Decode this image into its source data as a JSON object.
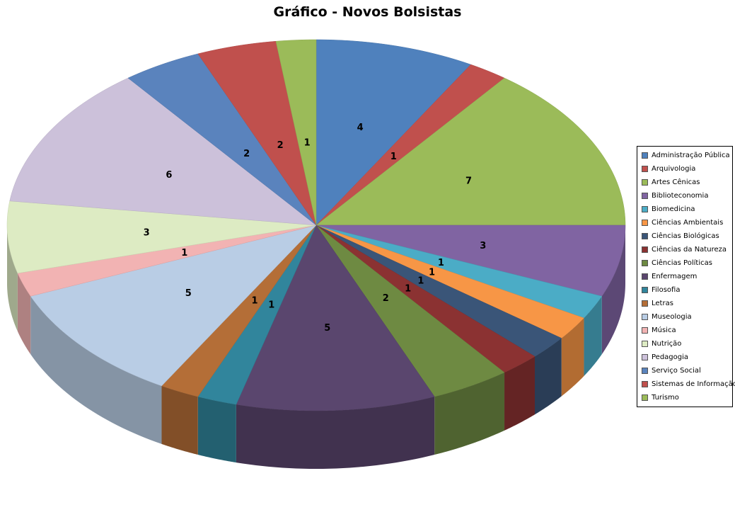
{
  "chart_data": {
    "type": "pie",
    "title": "Gráfico - Novos Bolsistas",
    "style": "3d",
    "legend_position": "right",
    "data_labels": true,
    "categories": [
      "Administração Pública",
      "Arquivologia",
      "Artes Cênicas",
      "Biblioteconomia",
      "Biomedicina",
      "Ciências Ambientais",
      "Ciências Biológicas",
      "Ciências da Natureza",
      "Ciências Políticas",
      "Enfermagem",
      "Filosofia",
      "Letras",
      "Museologia",
      "Música",
      "Nutrição",
      "Pedagogia",
      "Serviço Social",
      "Sistemas de Informação",
      "Turismo"
    ],
    "values": [
      4,
      1,
      7,
      3,
      1,
      1,
      1,
      1,
      2,
      5,
      1,
      1,
      5,
      1,
      3,
      6,
      2,
      2,
      1
    ],
    "colors": [
      "#4F81BD",
      "#C0504D",
      "#9BBB59",
      "#8064A2",
      "#4BACC6",
      "#F79646",
      "#3A5578",
      "#8B3232",
      "#6E8A42",
      "#5A466E",
      "#31859C",
      "#B46E37",
      "#B9CDE5",
      "#F2B3B3",
      "#DDEBC3",
      "#CCC1DA",
      "#5A83BD",
      "#C0504D",
      "#9BBB59"
    ]
  }
}
